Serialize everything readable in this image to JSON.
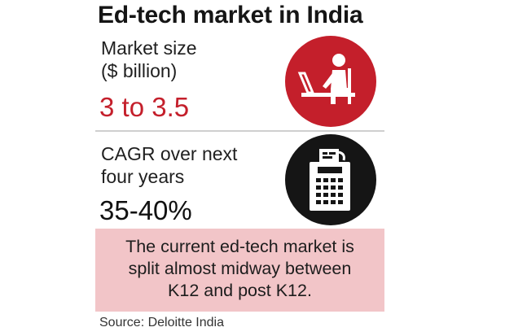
{
  "header": {
    "title": "Ed-tech market in India"
  },
  "stats": [
    {
      "label_line1": "Market size",
      "label_line2": "($ billion)",
      "value": "3 to 3.5",
      "value_color": "#c41f2b",
      "icon": "person-at-laptop-icon",
      "icon_bg": "#c41f2b"
    },
    {
      "label_line1": "CAGR over next",
      "label_line2": "four years",
      "value": "35-40%",
      "value_color": "#111111",
      "icon": "calculator-receipt-icon",
      "icon_bg": "#151515"
    }
  ],
  "note": {
    "text": "The current ed-tech market is\nsplit almost midway between\nK12 and post K12.",
    "bg_color": "#f2c5c8"
  },
  "source": "Source: Deloitte India"
}
